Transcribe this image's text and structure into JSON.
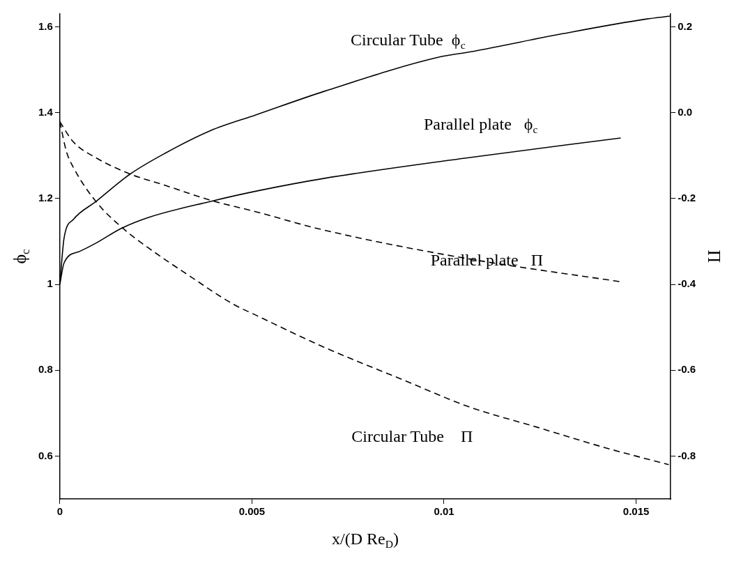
{
  "chart_data": {
    "type": "line",
    "xlabel": "x/(D Re$_{D}$)",
    "ylabel": "ϕ$_{c}$",
    "y2label": "Π",
    "xlim": [
      0,
      0.0159
    ],
    "xticks": [
      0,
      0.005,
      0.01,
      0.015
    ],
    "ylim": [
      0.5,
      1.63
    ],
    "yticks": [
      0.6,
      0.8,
      1,
      1.2,
      1.4,
      1.6
    ],
    "y2lim": [
      -0.9,
      0.23
    ],
    "y2ticks": [
      -0.8,
      -0.6,
      -0.4,
      -0.2,
      {
        "value": 0,
        "label": "0.0"
      },
      0.2
    ],
    "grid": false,
    "legend": false,
    "series": [
      {
        "name": "Circular Tube  ϕ$_{c}$",
        "color": "#000000",
        "line_style": "solid",
        "x": [
          0,
          0.00011,
          0.00035,
          0.00094,
          0.00183,
          0.00273,
          0.00392,
          0.00511,
          0.00689,
          0.0099,
          0.0107,
          0.01309,
          0.01526,
          0.0159
        ],
        "values": [
          1.0,
          1.108,
          1.151,
          1.193,
          1.257,
          1.305,
          1.358,
          1.395,
          1.45,
          1.53,
          1.542,
          1.584,
          1.618,
          1.625
        ]
      },
      {
        "name": "Parallel plate   ϕ$_{c}$",
        "color": "#000000",
        "line_style": "solid",
        "x": [
          0,
          0.00011,
          0.00052,
          0.00094,
          0.00159,
          0.00231,
          0.00391,
          0.0051,
          0.00689,
          0.01054,
          0.0146
        ],
        "values": [
          1.0,
          1.05,
          1.077,
          1.096,
          1.13,
          1.156,
          1.193,
          1.217,
          1.247,
          1.294,
          1.341
        ]
      },
      {
        "name": "Parallel plate   Π",
        "color": "#000000",
        "line_style": "dashed",
        "axis": "y2",
        "x": [
          0,
          0.00035,
          0.00094,
          0.00183,
          0.00273,
          0.00392,
          0.00511,
          0.0068,
          0.01054,
          0.0146
        ],
        "values": [
          -0.021,
          -0.068,
          -0.105,
          -0.143,
          -0.169,
          -0.204,
          -0.231,
          -0.272,
          -0.339,
          -0.394
        ]
      },
      {
        "name": "Circular Tube    Π",
        "color": "#000000",
        "line_style": "dashed",
        "axis": "y2",
        "x": [
          0,
          0.00017,
          0.00035,
          0.00094,
          0.00165,
          0.00243,
          0.00332,
          0.00451,
          0.00511,
          0.00689,
          0.00895,
          0.01064,
          0.01243,
          0.01421,
          0.01585
        ],
        "values": [
          -0.021,
          -0.09,
          -0.127,
          -0.207,
          -0.27,
          -0.323,
          -0.377,
          -0.446,
          -0.472,
          -0.547,
          -0.623,
          -0.685,
          -0.733,
          -0.781,
          -0.82
        ]
      }
    ]
  }
}
